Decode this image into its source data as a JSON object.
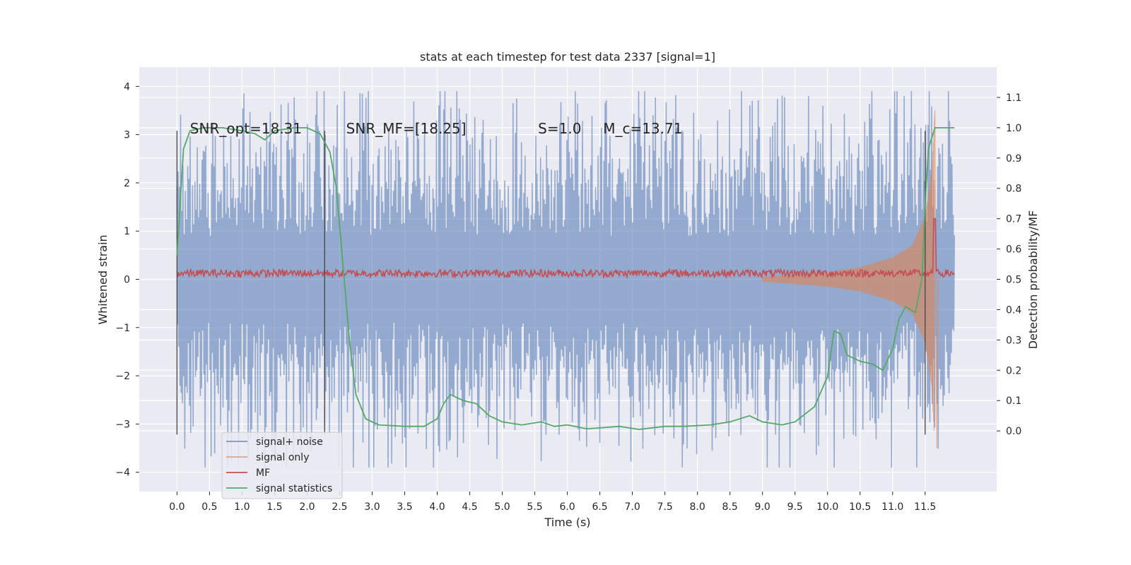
{
  "chart_data": {
    "type": "line",
    "title": "stats at each timestep for test data 2337 [signal=1]",
    "xlabel": "Time (s)",
    "ylabel_left": "Whitened strain",
    "ylabel_right": "Detection probability/MF",
    "xlim": [
      -0.58,
      12.6
    ],
    "ylim_left": [
      -4.4,
      4.4
    ],
    "ylim_right": [
      -0.2,
      1.2
    ],
    "x_ticks": [
      "0.0",
      "0.5",
      "1.0",
      "1.5",
      "2.0",
      "2.5",
      "3.0",
      "3.5",
      "4.0",
      "4.5",
      "5.0",
      "5.5",
      "6.0",
      "6.5",
      "7.0",
      "7.5",
      "8.0",
      "8.5",
      "9.0",
      "9.5",
      "10.0",
      "10.5",
      "11.0",
      "11.5"
    ],
    "y_ticks_left": [
      "4",
      "3",
      "2",
      "1",
      "0",
      "−1",
      "−2",
      "−3",
      "−4"
    ],
    "y_ticks_right": [
      "1.1",
      "1.0",
      "0.9",
      "0.8",
      "0.7",
      "0.6",
      "0.5",
      "0.4",
      "0.3",
      "0.2",
      "0.1",
      "0.0"
    ],
    "grid": true,
    "legend_position": "lower-left",
    "annotations": [
      {
        "text": "SNR_opt=18.31",
        "x": 0.2,
        "y": 3.2
      },
      {
        "text": "SNR_MF=[18.25]",
        "x": 2.6,
        "y": 3.2
      },
      {
        "text": "S=1.0",
        "x": 5.55,
        "y": 3.2
      },
      {
        "text": "M_c=13.71",
        "x": 6.55,
        "y": 3.2
      }
    ],
    "vertical_markers_x": [
      0.0,
      2.27,
      11.5
    ],
    "series": [
      {
        "name": "signal+ noise",
        "color": "#4c72b0",
        "axis": "left",
        "description_points": {
          "x_range": [
            0.0,
            11.95
          ],
          "amplitude_typical": 1.9,
          "amplitude_peak": 3.9
        }
      },
      {
        "name": "signal only",
        "color": "#dd8452",
        "axis": "left",
        "points": [
          [
            9.0,
            0.05
          ],
          [
            9.5,
            0.1
          ],
          [
            10.0,
            0.15
          ],
          [
            10.5,
            0.25
          ],
          [
            11.0,
            0.45
          ],
          [
            11.3,
            0.7
          ],
          [
            11.5,
            1.3
          ],
          [
            11.6,
            2.2
          ],
          [
            11.65,
            3.5
          ],
          [
            11.68,
            -3.5
          ],
          [
            11.7,
            0.05
          ]
        ]
      },
      {
        "name": "MF",
        "color": "#c44e52",
        "axis": "right",
        "points": [
          [
            0.0,
            0.52
          ],
          [
            11.6,
            0.52
          ],
          [
            11.65,
            0.7
          ],
          [
            11.7,
            0.52
          ],
          [
            11.95,
            0.52
          ]
        ]
      },
      {
        "name": "signal statistics",
        "color": "#55a868",
        "axis": "right",
        "points": [
          [
            0.0,
            0.58
          ],
          [
            0.1,
            0.93
          ],
          [
            0.2,
            0.99
          ],
          [
            0.4,
            1.0
          ],
          [
            0.7,
            1.0
          ],
          [
            1.0,
            0.99
          ],
          [
            1.2,
            0.98
          ],
          [
            1.35,
            0.96
          ],
          [
            1.5,
            0.99
          ],
          [
            1.8,
            1.0
          ],
          [
            2.0,
            1.0
          ],
          [
            2.2,
            0.98
          ],
          [
            2.35,
            0.92
          ],
          [
            2.45,
            0.8
          ],
          [
            2.55,
            0.55
          ],
          [
            2.65,
            0.3
          ],
          [
            2.75,
            0.12
          ],
          [
            2.9,
            0.04
          ],
          [
            3.1,
            0.02
          ],
          [
            3.5,
            0.015
          ],
          [
            3.8,
            0.015
          ],
          [
            4.0,
            0.04
          ],
          [
            4.1,
            0.09
          ],
          [
            4.2,
            0.12
          ],
          [
            4.4,
            0.1
          ],
          [
            4.6,
            0.09
          ],
          [
            4.8,
            0.05
          ],
          [
            5.0,
            0.03
          ],
          [
            5.3,
            0.02
          ],
          [
            5.6,
            0.03
          ],
          [
            5.8,
            0.015
          ],
          [
            6.0,
            0.02
          ],
          [
            6.3,
            0.007
          ],
          [
            6.5,
            0.01
          ],
          [
            6.8,
            0.015
          ],
          [
            7.1,
            0.005
          ],
          [
            7.5,
            0.015
          ],
          [
            7.8,
            0.015
          ],
          [
            8.2,
            0.02
          ],
          [
            8.5,
            0.03
          ],
          [
            8.8,
            0.05
          ],
          [
            9.0,
            0.03
          ],
          [
            9.3,
            0.02
          ],
          [
            9.5,
            0.03
          ],
          [
            9.8,
            0.08
          ],
          [
            10.0,
            0.18
          ],
          [
            10.1,
            0.33
          ],
          [
            10.2,
            0.32
          ],
          [
            10.3,
            0.25
          ],
          [
            10.5,
            0.23
          ],
          [
            10.7,
            0.22
          ],
          [
            10.85,
            0.2
          ],
          [
            11.0,
            0.27
          ],
          [
            11.1,
            0.37
          ],
          [
            11.2,
            0.41
          ],
          [
            11.35,
            0.39
          ],
          [
            11.45,
            0.5
          ],
          [
            11.5,
            0.75
          ],
          [
            11.55,
            0.93
          ],
          [
            11.65,
            1.0
          ],
          [
            11.95,
            1.0
          ]
        ]
      }
    ]
  }
}
